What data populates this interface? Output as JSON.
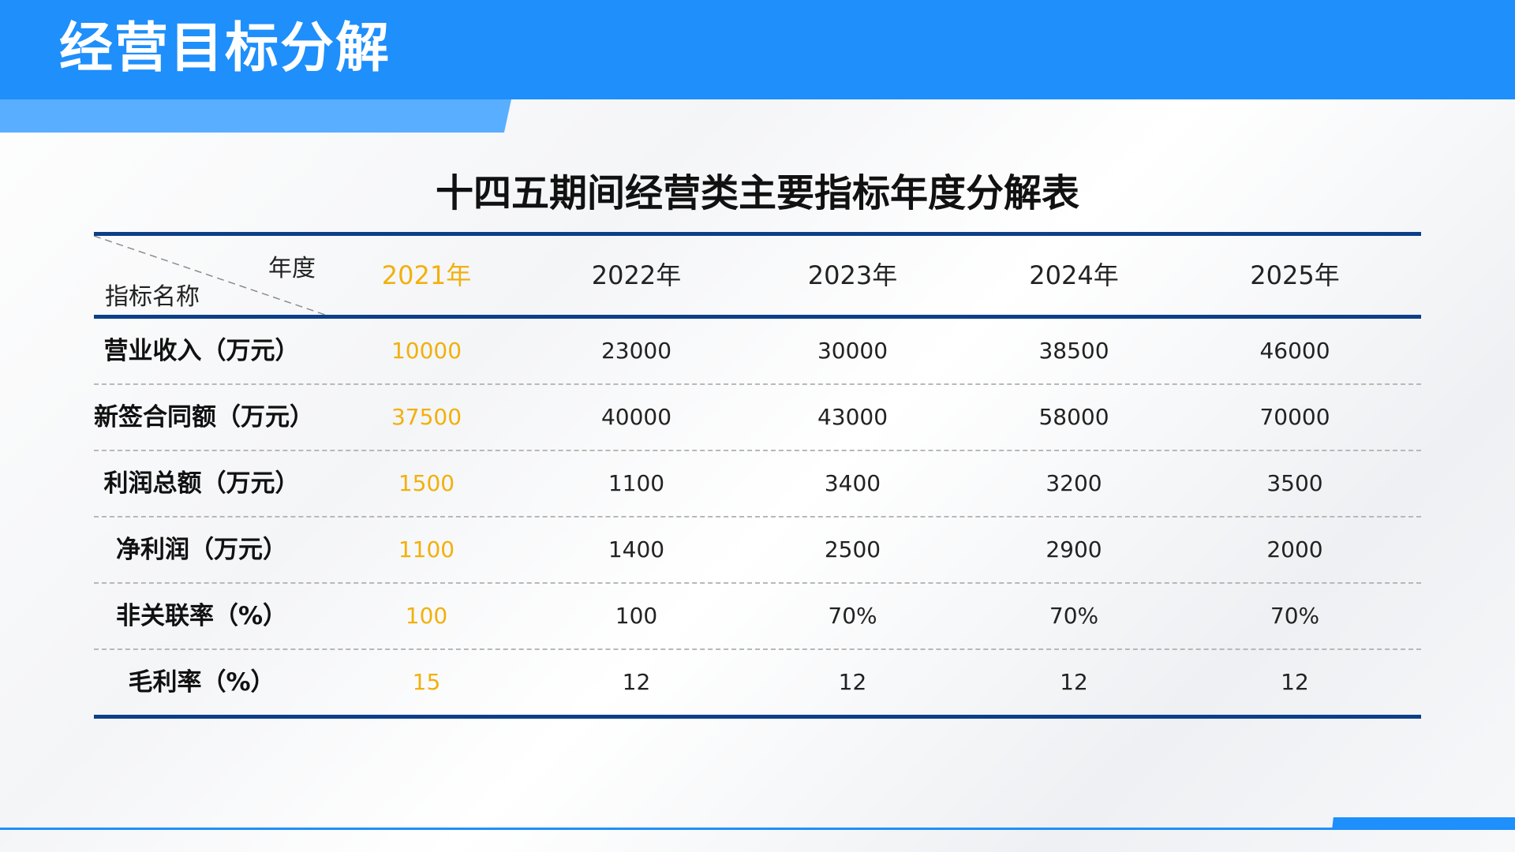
{
  "header": {
    "title": "经营目标分解"
  },
  "table": {
    "title": "十四五期间经营类主要指标年度分解表",
    "corner_top": "年度",
    "corner_bottom": "指标名称",
    "years": [
      "2021年",
      "2022年",
      "2023年",
      "2024年",
      "2025年"
    ],
    "rows": [
      {
        "label": "营业收入（万元）",
        "values": [
          "10000",
          "23000",
          "30000",
          "38500",
          "46000"
        ]
      },
      {
        "label": "新签合同额（万元）",
        "values": [
          "37500",
          "40000",
          "43000",
          "58000",
          "70000"
        ]
      },
      {
        "label": "利润总额（万元）",
        "values": [
          "1500",
          "1100",
          "3400",
          "3200",
          "3500"
        ]
      },
      {
        "label": "净利润（万元）",
        "values": [
          "1100",
          "1400",
          "2500",
          "2900",
          "2000"
        ]
      },
      {
        "label": "非关联率（%）",
        "values": [
          "100",
          "100",
          "70%",
          "70%",
          "70%"
        ]
      },
      {
        "label": "毛利率（%）",
        "values": [
          "15",
          "12",
          "12",
          "12",
          "12"
        ]
      }
    ]
  },
  "colors": {
    "header_blue": "#1e8ffb",
    "header_light_blue": "#5aaeff",
    "table_rule": "#0c3f88",
    "highlight_2021": "#f2b00c"
  }
}
